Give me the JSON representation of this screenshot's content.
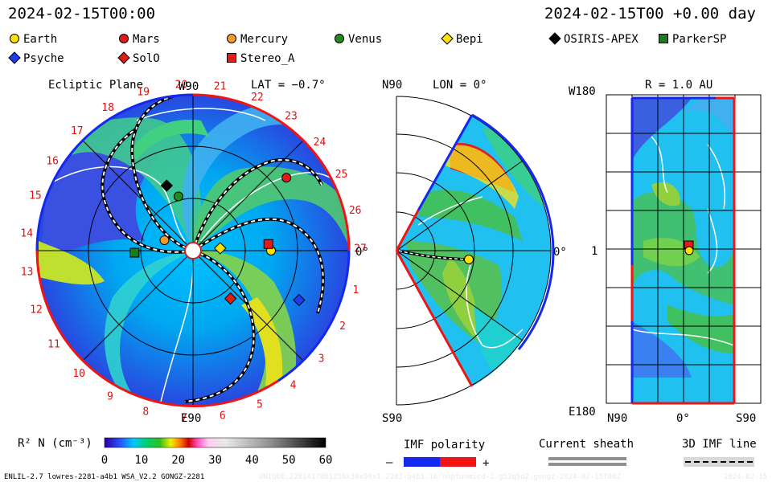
{
  "header": {
    "datetime": "2024-02-15T00:00",
    "offset": "2024-02-15T00 +0.00 day"
  },
  "legend": [
    {
      "name": "Earth",
      "shape": "circle",
      "color": "#ffe000"
    },
    {
      "name": "Mars",
      "shape": "circle",
      "color": "#e21a1a"
    },
    {
      "name": "Mercury",
      "shape": "circle",
      "color": "#f29a2e"
    },
    {
      "name": "Venus",
      "shape": "circle",
      "color": "#1e8c1e"
    },
    {
      "name": "Bepi",
      "shape": "diamond",
      "color": "#ffe000"
    },
    {
      "name": "OSIRIS-APEX",
      "shape": "diamond",
      "color": "#000000"
    },
    {
      "name": "ParkerSP",
      "shape": "square",
      "color": "#1e7a1e"
    },
    {
      "name": "Psyche",
      "shape": "diamond",
      "color": "#1e3cf0"
    },
    {
      "name": "SolO",
      "shape": "diamond",
      "color": "#e21a1a"
    },
    {
      "name": "Stereo_A",
      "shape": "square",
      "color": "#e21a1a"
    }
  ],
  "panels": {
    "ecliptic": {
      "title": "Ecliptic Plane",
      "w90": "W90",
      "lat": "LAT = −0.7°",
      "e90": "E90",
      "zero": "0°",
      "carrington_days": [
        "1",
        "2",
        "3",
        "4",
        "5",
        "6",
        "7",
        "8",
        "9",
        "10",
        "11",
        "12",
        "13",
        "14",
        "15",
        "16",
        "17",
        "18",
        "19",
        "20",
        "21",
        "22",
        "23",
        "24",
        "25",
        "26",
        "27"
      ]
    },
    "meridional": {
      "n90": "N90",
      "lon": "LON = 0°",
      "s90": "S90",
      "zero": "0°"
    },
    "map": {
      "r": "R = 1.0 AU",
      "w180": "W180",
      "one": "1",
      "e180": "E180",
      "n90": "N90",
      "zero": "0°",
      "s90": "S90"
    }
  },
  "colorbar": {
    "label": "R² N (cm⁻³)",
    "ticks": [
      "0",
      "10",
      "20",
      "30",
      "40",
      "50",
      "60"
    ]
  },
  "imf": {
    "title": "IMF polarity",
    "minus": "–",
    "plus": "+",
    "colors": {
      "negative": "#1428f0",
      "positive": "#f01414"
    }
  },
  "sheath": {
    "title": "Current sheath"
  },
  "imf3d": {
    "title": "3D IMF line"
  },
  "footer": {
    "model": "ENLIL-2.7 lowres-2281-a4b1 WSA_V2.2 GONGZ-2281",
    "run": "UNIQUE.2281417001256x30x90x1.2281-a4b1.16-noptunmicd-1.g53q5d2.gongz-2024-02-15T00Z",
    "date": "2024-02-15"
  },
  "chart_data": [
    {
      "type": "heatmap",
      "title": "Ecliptic Plane",
      "quantity": "R² N (cm⁻³)",
      "colorbar_range": [
        0,
        60
      ],
      "lat": -0.7,
      "bodies_angle_deg": {
        "Earth": 0,
        "Stereo_A": 5,
        "Mars": 38,
        "Mercury": 160,
        "Venus": 105,
        "Bepi": 5,
        "OSIRIS-APEX": 112,
        "ParkerSP": 182,
        "Psyche": -25,
        "SolO": -52
      },
      "bodies_radius_au": {
        "Earth": 1.0,
        "Stereo_A": 0.97,
        "Mars": 1.52,
        "Mercury": 0.39,
        "Venus": 0.72,
        "Bepi": 0.35,
        "OSIRIS-APEX": 0.9,
        "ParkerSP": 0.75,
        "Psyche": 1.5,
        "SolO": 0.78
      }
    },
    {
      "type": "heatmap",
      "title": "LON = 0°",
      "quantity": "R² N (cm⁻³)",
      "colorbar_range": [
        0,
        60
      ]
    },
    {
      "type": "heatmap",
      "title": "R = 1.0 AU",
      "quantity": "R² N (cm⁻³)",
      "colorbar_range": [
        0,
        60
      ]
    }
  ]
}
